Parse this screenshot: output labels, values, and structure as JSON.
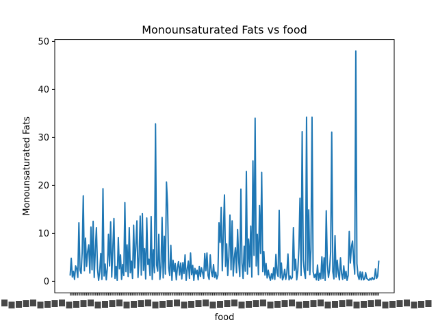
{
  "chart_data": {
    "type": "line",
    "title": "Monounsaturated Fats vs food",
    "xlabel": "food",
    "ylabel": "Monounsaturated Fats",
    "ylim": [
      -2.4,
      50.4
    ],
    "yticks": [
      0,
      10,
      20,
      30,
      40,
      50
    ],
    "grid": false,
    "legend": "none",
    "x_tick_labels": "illegible (hundreds of overlapping food names)",
    "series": [
      {
        "color": "#1f77b4",
        "values": [
          1.2,
          4.8,
          0.9,
          2.1,
          0.4,
          3.2,
          2.6,
          0.8,
          12.2,
          2.4,
          1.6,
          6.1,
          17.8,
          2.2,
          9.0,
          3.1,
          6.2,
          7.6,
          1.7,
          11.3,
          2.4,
          12.5,
          0.8,
          6.4,
          11.2,
          2.6,
          0.2,
          2.0,
          5.8,
          0.4,
          19.3,
          1.1,
          3.6,
          0.3,
          2.8,
          9.8,
          3.2,
          12.4,
          0.9,
          6.8,
          13.1,
          0.6,
          3.1,
          0.2,
          9.1,
          2.6,
          5.5,
          0.4,
          3.5,
          1.2,
          16.4,
          2.0,
          7.6,
          1.0,
          11.2,
          1.8,
          4.2,
          0.6,
          11.7,
          2.8,
          7.2,
          12.6,
          0.8,
          5.0,
          13.6,
          1.3,
          14.1,
          2.3,
          6.8,
          0.5,
          13.2,
          3.5,
          4.6,
          1.2,
          13.5,
          0.4,
          6.6,
          1.8,
          32.8,
          3.4,
          2.1,
          9.8,
          0.4,
          3.0,
          13.3,
          0.7,
          9.4,
          1.5,
          20.7,
          15.9,
          2.8,
          1.2,
          7.5,
          0.2,
          4.4,
          2.0,
          3.7,
          0.3,
          2.9,
          4.1,
          1.3,
          3.8,
          0.5,
          3.9,
          1.6,
          5.5,
          0.2,
          2.6,
          4.2,
          0.6,
          5.9,
          1.4,
          3.3,
          0.2,
          2.7,
          1.5,
          2.3,
          0.3,
          3.1,
          1.0,
          2.8,
          1.8,
          0.6,
          5.8,
          2.2,
          5.9,
          1.2,
          0.4,
          5.5,
          2.0,
          1.0,
          3.5,
          0.8,
          1.9,
          0.5,
          1.3,
          12.2,
          8.1,
          15.4,
          2.2,
          10.3,
          18.0,
          3.1,
          7.8,
          1.2,
          5.1,
          13.8,
          2.4,
          12.6,
          1.1,
          4.9,
          7.0,
          1.8,
          10.8,
          4.3,
          1.0,
          19.2,
          3.8,
          0.6,
          7.3,
          2.1,
          22.9,
          1.5,
          8.8,
          3.0,
          11.5,
          0.9,
          25.1,
          5.4,
          34.0,
          3.2,
          9.8,
          1.4,
          15.8,
          5.8,
          22.7,
          2.0,
          6.2,
          1.3,
          3.7,
          0.7,
          2.3,
          1.0,
          0.2,
          1.6,
          0.5,
          2.8,
          0.4,
          5.6,
          1.8,
          1.0,
          14.8,
          0.7,
          3.8,
          0.3,
          0.9,
          2.5,
          0.4,
          1.7,
          5.7,
          0.3,
          1.1,
          0.5,
          0.8,
          11.2,
          2.3,
          4.6,
          0.3,
          2.2,
          6.9,
          17.3,
          1.2,
          31.2,
          4.5,
          1.9,
          0.6,
          34.2,
          2.3,
          14.9,
          1.4,
          6.6,
          34.2,
          2.0,
          0.8,
          1.5,
          0.3,
          3.4,
          0.2,
          1.7,
          0.5,
          5.1,
          0.6,
          4.9,
          0.2,
          14.7,
          3.6,
          0.8,
          2.4,
          6.1,
          31.1,
          2.0,
          0.5,
          9.5,
          0.9,
          4.4,
          1.8,
          0.3,
          4.9,
          1.6,
          0.4,
          3.2,
          0.6,
          2.1,
          0.2,
          1.2,
          10.4,
          3.8,
          7.2,
          8.4,
          4.5,
          1.5,
          48.0,
          3.7,
          1.2,
          0.4,
          2.0,
          0.3,
          1.9,
          0.3,
          0.5,
          1.8,
          0.6,
          0.4,
          0.2,
          0.6,
          0.3,
          0.8,
          0.4,
          0.5,
          2.6,
          0.6,
          1.1,
          4.3
        ]
      }
    ]
  }
}
